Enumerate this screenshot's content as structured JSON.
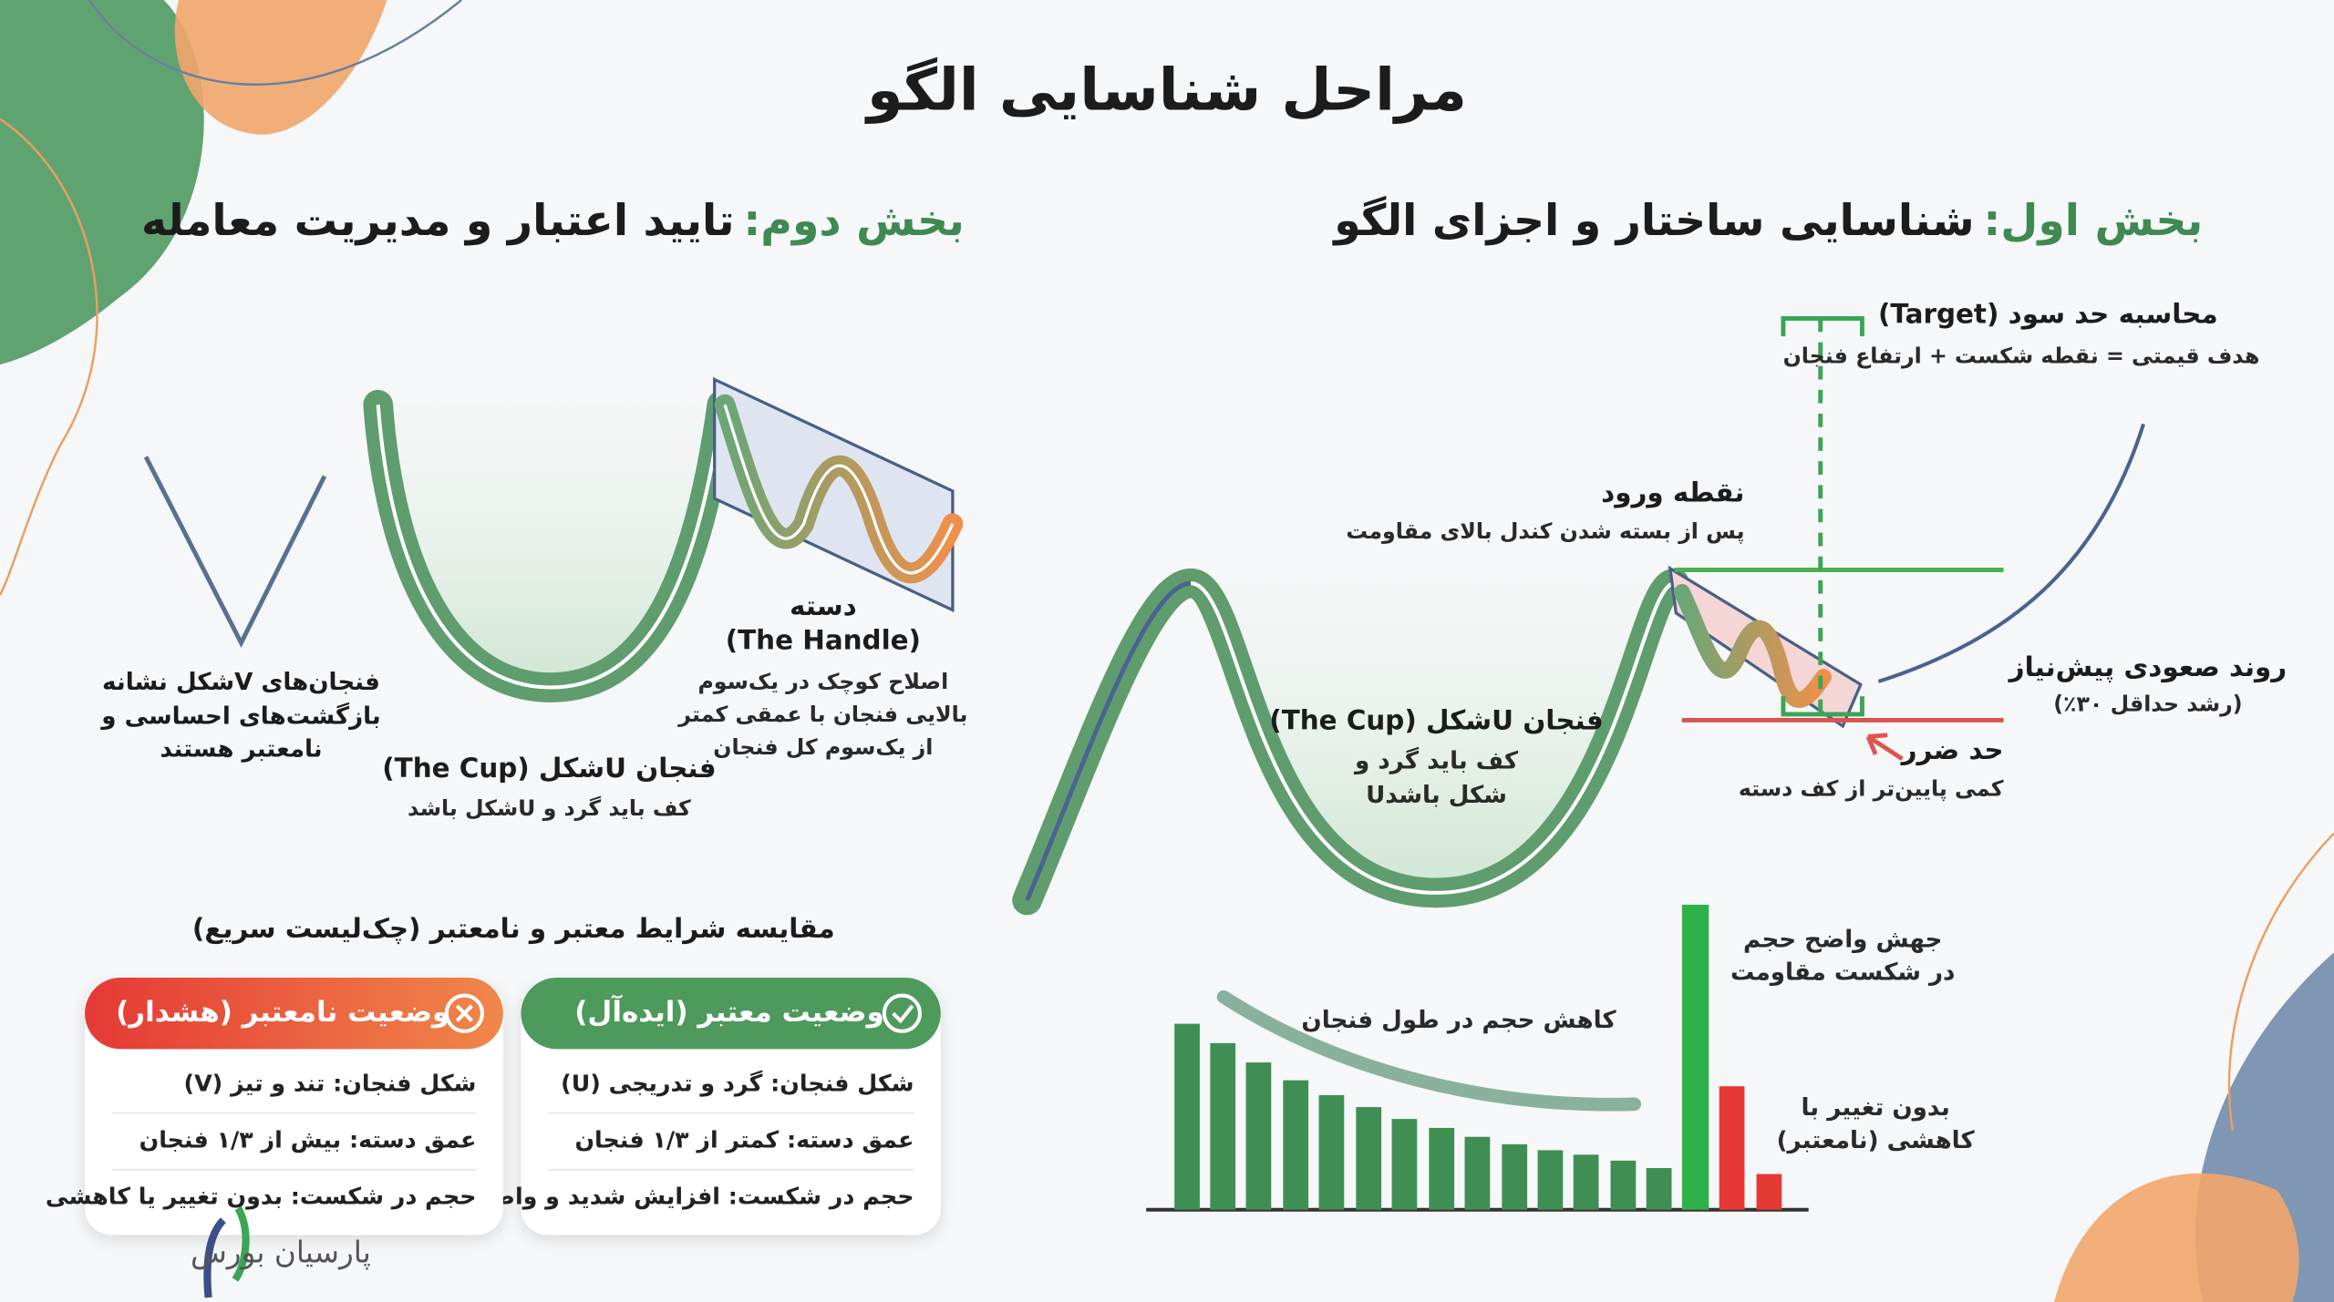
{
  "title": "مراحل شناسایی الگو",
  "part_one": {
    "label": "بخش اول:",
    "title": "شناسایی ساختار و اجزای الگو",
    "target": {
      "title": "محاسبه حد سود (Target)",
      "formula": "هدف قیمتی = نقطه شکست + ارتفاع فنجان"
    },
    "entry": {
      "title": "نقطه ورود",
      "note": "پس از بسته شدن کندل بالای مقاومت"
    },
    "uptrend": {
      "title": "روند صعودی پیش‌نیاز",
      "note": "(رشد حداقل ۳۰٪)"
    },
    "stop_loss": {
      "title": "حد ضرر",
      "note": "کمی پایین‌تر از کف دسته"
    },
    "cup": {
      "title": "فنجان Uشکل (The Cup)",
      "lines": [
        "کف باید گرد و",
        "Uشکل باشد"
      ]
    },
    "volume": {
      "spike": [
        "جهش واضح حجم",
        "در شکست مقاومت"
      ],
      "decline": "کاهش حجم در طول فنجان",
      "invalid": [
        "بدون تغییر با",
        "کاهشی (نامعتبر)"
      ]
    }
  },
  "part_two": {
    "label": "بخش دوم:",
    "title": "تایید اعتبار و مدیریت معامله",
    "v_cup": [
      "فنجان‌های Vشکل نشانه",
      "بازگشت‌های احساسی و",
      "نامعتبر هستند"
    ],
    "handle": {
      "title": "دسته",
      "subtitle": "(The Handle)",
      "lines": [
        "اصلاح کوچک در یک‌سوم",
        "بالایی فنجان با عمقی کمتر",
        "از یک‌سوم کل فنجان"
      ]
    },
    "cup": {
      "title": "فنجان Uشکل (The Cup)",
      "note": "کف باید گرد و Uشکل باشد"
    },
    "checklist": {
      "title": "مقایسه شرایط معتبر و نامعتبر (چک‌لیست سریع)",
      "valid": {
        "title": "وضعیت معتبر (ایده‌آل)",
        "rows": [
          "شکل فنجان: گرد و تدریجی (U)",
          "عمق دسته: کمتر از ۱/۳ فنجان",
          "حجم در شکست: افزایش شدید و واضح"
        ]
      },
      "invalid": {
        "title": "وضعیت نامعتبر (هشدار)",
        "rows": [
          "شکل فنجان: تند و تیز (V)",
          "عمق دسته: بیش از ۱/۳ فنجان",
          "حجم در شکست: بدون تغییر یا کاهشی"
        ]
      }
    }
  },
  "logo": "پارسیان بورس"
}
